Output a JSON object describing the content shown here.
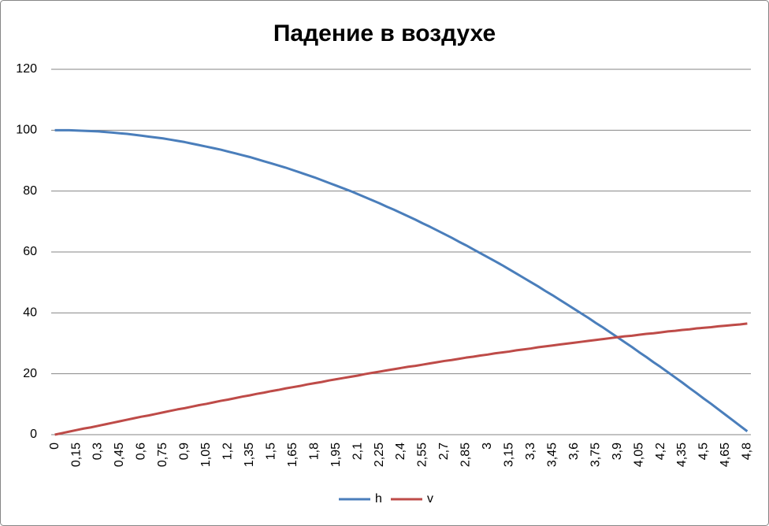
{
  "chart_data": {
    "type": "line",
    "title": "Падение в воздухе",
    "categories": [
      "0",
      null,
      null,
      "0,15",
      null,
      null,
      "0,3",
      null,
      null,
      "0,45",
      null,
      null,
      "0,6",
      null,
      null,
      "0,75",
      null,
      null,
      "0,9",
      null,
      null,
      "1,05",
      null,
      null,
      "1,2",
      null,
      null,
      "1,35",
      null,
      null,
      "1,5",
      null,
      null,
      "1,65",
      null,
      null,
      "1,8",
      null,
      null,
      "1,95",
      null,
      null,
      "2,1",
      null,
      null,
      "2,25",
      null,
      null,
      "2,4",
      null,
      null,
      "2,55",
      null,
      null,
      "2,7",
      null,
      null,
      "2,85",
      null,
      null,
      "3",
      null,
      null,
      "3,15",
      null,
      null,
      "3,3",
      null,
      null,
      "3,45",
      null,
      null,
      "3,6",
      null,
      null,
      "3,75",
      null,
      null,
      "3,9",
      null,
      null,
      "4,05",
      null,
      null,
      "4,2",
      null,
      null,
      "4,35",
      null,
      null,
      "4,5",
      null,
      null,
      "4,65",
      null,
      null,
      "4,8"
    ],
    "series": [
      {
        "name": "h",
        "color": "#4a7ebb",
        "values": [
          100,
          100,
          100,
          99.9,
          99.8,
          99.7,
          99.6,
          99.4,
          99.2,
          99,
          98.8,
          98.5,
          98.2,
          97.9,
          97.6,
          97.3,
          96.9,
          96.5,
          96.1,
          95.6,
          95.1,
          94.6,
          94.1,
          93.6,
          93,
          92.4,
          91.8,
          91.2,
          90.5,
          89.8,
          89.1,
          88.4,
          87.7,
          86.9,
          86.1,
          85.3,
          84.5,
          83.6,
          82.7,
          81.8,
          80.9,
          80,
          79,
          78,
          77,
          76,
          74.9,
          73.9,
          72.8,
          71.7,
          70.6,
          69.4,
          68.3,
          67.1,
          65.9,
          64.7,
          63.4,
          62.2,
          60.9,
          59.6,
          58.3,
          57,
          55.7,
          54.3,
          52.9,
          51.5,
          50.1,
          48.7,
          47.2,
          45.8,
          44.3,
          42.8,
          41.3,
          39.8,
          38.3,
          36.7,
          35.2,
          33.6,
          32,
          30.4,
          28.8,
          27.1,
          25.5,
          23.8,
          22.2,
          20.5,
          18.8,
          17.1,
          15.3,
          13.6,
          11.8,
          10.1,
          8.3,
          6.5,
          4.7,
          2.9,
          1.1
        ]
      },
      {
        "name": "v",
        "color": "#be4b48",
        "values": [
          0,
          0.5,
          1,
          1.5,
          2,
          2.4,
          2.9,
          3.4,
          3.9,
          4.4,
          4.9,
          5.4,
          5.9,
          6.3,
          6.8,
          7.3,
          7.8,
          8.3,
          8.7,
          9.2,
          9.7,
          10.1,
          10.6,
          11.1,
          11.5,
          12,
          12.5,
          12.9,
          13.4,
          13.8,
          14.3,
          14.7,
          15.2,
          15.6,
          16,
          16.5,
          16.9,
          17.3,
          17.8,
          18.2,
          18.6,
          19,
          19.4,
          19.9,
          20.3,
          20.7,
          21.1,
          21.5,
          21.9,
          22.3,
          22.6,
          23,
          23.4,
          23.8,
          24.2,
          24.5,
          24.9,
          25.3,
          25.6,
          26,
          26.3,
          26.7,
          27,
          27.3,
          27.7,
          28,
          28.3,
          28.7,
          29,
          29.3,
          29.6,
          29.9,
          30.2,
          30.5,
          30.8,
          31.1,
          31.4,
          31.7,
          32,
          32.3,
          32.5,
          32.8,
          33.1,
          33.3,
          33.6,
          33.9,
          34.1,
          34.4,
          34.6,
          34.9,
          35.1,
          35.3,
          35.6,
          35.8,
          36,
          36.2,
          36.5
        ]
      }
    ],
    "ylim": [
      0,
      120
    ],
    "yticks": [
      0,
      20,
      40,
      60,
      80,
      100,
      120
    ],
    "grid": true,
    "legend": "bottom"
  }
}
